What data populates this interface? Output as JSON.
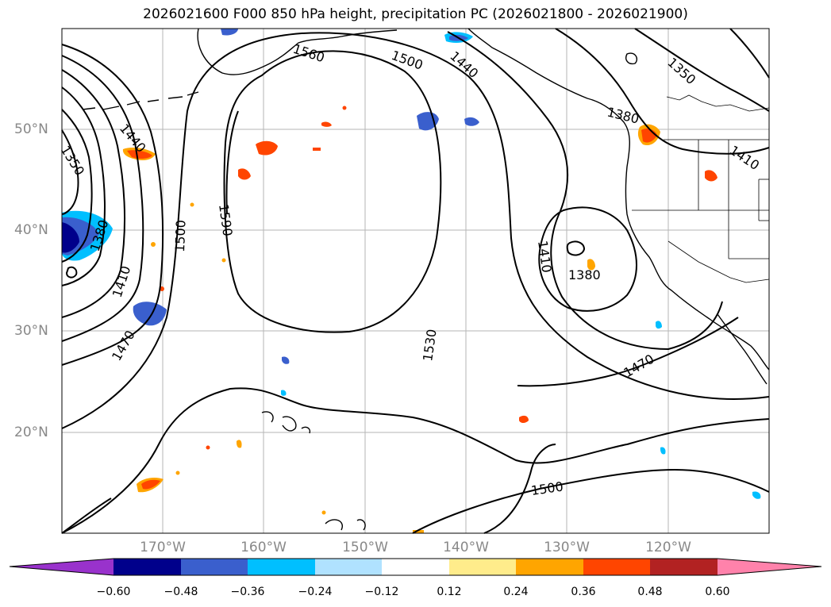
{
  "title": "2026021600 F000 850 hPa height, precipitation PC (2026021800 - 2026021900)",
  "lon_labels": [
    "170°W",
    "160°W",
    "150°W",
    "140°W",
    "130°W",
    "120°W"
  ],
  "lat_labels": [
    "50°N",
    "40°N",
    "30°N",
    "20°N"
  ],
  "contour_labels": [
    "1560",
    "1500",
    "1440",
    "1350",
    "1380",
    "1440",
    "1350",
    "1380",
    "1410",
    "1470",
    "1500",
    "1590",
    "1530",
    "1410",
    "1380",
    "1470",
    "1410",
    "1500"
  ],
  "colorbar": {
    "ticks": [
      "−0.60",
      "−0.48",
      "−0.36",
      "−0.24",
      "−0.12",
      "0.12",
      "0.24",
      "0.36",
      "0.48",
      "0.60"
    ],
    "colors": [
      "#9932cc",
      "#00008b",
      "#3a5fcd",
      "#00bfff",
      "#b0e2ff",
      "#ffffff",
      "#ffec8b",
      "#ffa500",
      "#ff4500",
      "#b22222",
      "#ff82ab"
    ]
  }
}
